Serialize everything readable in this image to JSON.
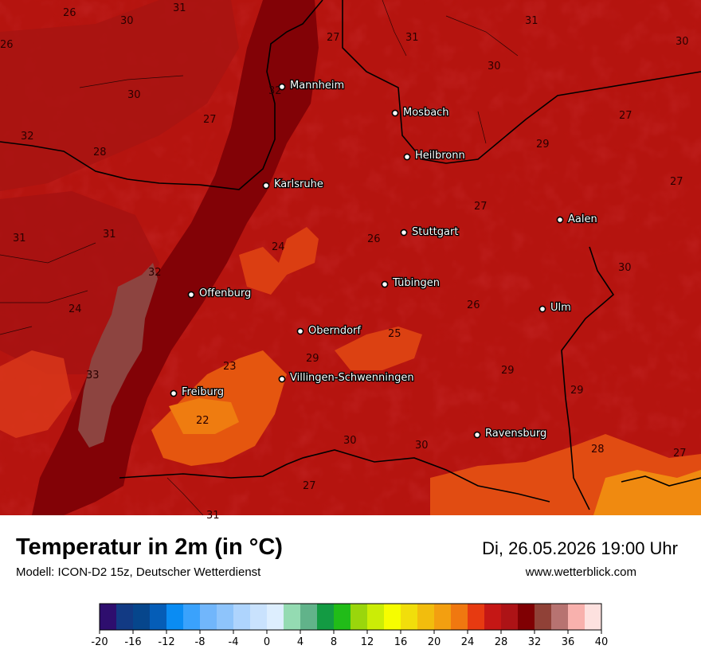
{
  "header": {
    "title": "Temperatur in 2m (in °C)",
    "subtitle": "Modell: ICON-D2 15z, Deutscher Wetterdienst",
    "datetime": "Di, 26.05.2026 19:00 Uhr",
    "website": "www.wetterblick.com"
  },
  "cities": [
    {
      "name": "Mannheim"
    },
    {
      "name": "Mosbach"
    },
    {
      "name": "Heilbronn"
    },
    {
      "name": "Karlsruhe"
    },
    {
      "name": "Aalen"
    },
    {
      "name": "Stuttgart"
    },
    {
      "name": "Tübingen"
    },
    {
      "name": "Offenburg"
    },
    {
      "name": "Ulm"
    },
    {
      "name": "Oberndorf"
    },
    {
      "name": "Villingen-Schwenningen"
    },
    {
      "name": "Freiburg"
    },
    {
      "name": "Ravensburg"
    }
  ],
  "values": [
    "26",
    "30",
    "31",
    "31",
    "30",
    "26",
    "27",
    "31",
    "30",
    "30",
    "27",
    "32",
    "32",
    "27",
    "28",
    "29",
    "27",
    "31",
    "31",
    "24",
    "26",
    "27",
    "32",
    "30",
    "24",
    "26",
    "29",
    "25",
    "33",
    "23",
    "29",
    "29",
    "22",
    "30",
    "30",
    "28",
    "27",
    "27",
    "31"
  ],
  "legend": {
    "ticks": [
      "-20",
      "-16",
      "-12",
      "-8",
      "-4",
      "0",
      "4",
      "8",
      "12",
      "16",
      "20",
      "24",
      "28",
      "32",
      "36",
      "40"
    ],
    "colors": [
      "#2e0e6e",
      "#123a84",
      "#06468c",
      "#055db7",
      "#0a8cf3",
      "#3aa2fc",
      "#71b6fb",
      "#8ec4fb",
      "#aed4fd",
      "#c9e2fd",
      "#ddeefe",
      "#94dbb2",
      "#61b38a",
      "#139b43",
      "#21bc18",
      "#9ad60c",
      "#cbed06",
      "#f6fd00",
      "#f1de0b",
      "#f2bd0d",
      "#f39f10",
      "#f07810",
      "#e73a11",
      "#c51715",
      "#ad1316",
      "#800003",
      "#904137",
      "#b77371",
      "#f8b1ad",
      "#fde1df"
    ]
  }
}
